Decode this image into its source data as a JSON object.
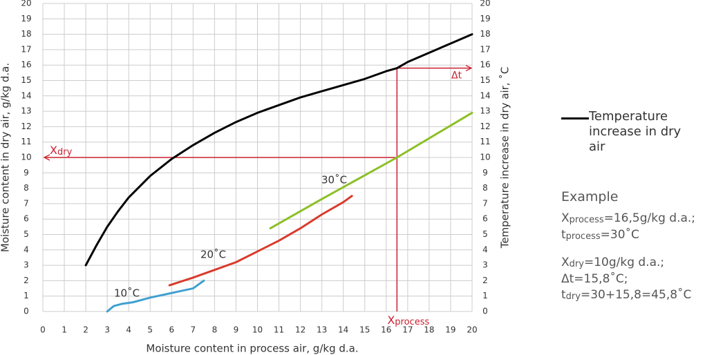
{
  "chart_data": {
    "type": "line",
    "xlabel": "Moisture content in process air, g/kg d.a.",
    "ylabel": "Moisture content in dry air, g/kg d.a.",
    "y2label": "Temperature increase in dry air, ˚C",
    "xlim": [
      0,
      20
    ],
    "ylim": [
      0,
      20
    ],
    "y2lim": [
      0,
      20
    ],
    "xticks": [
      0,
      1,
      2,
      3,
      4,
      5,
      6,
      7,
      8,
      9,
      10,
      11,
      12,
      13,
      14,
      15,
      16,
      17,
      18,
      19,
      20
    ],
    "yticks": [
      0,
      1,
      2,
      3,
      4,
      5,
      6,
      7,
      8,
      9,
      10,
      11,
      12,
      13,
      14,
      15,
      16,
      17,
      18,
      19,
      20
    ],
    "y2ticks": [
      0,
      1,
      2,
      3,
      4,
      5,
      6,
      7,
      8,
      9,
      10,
      11,
      12,
      13,
      14,
      15,
      16,
      17,
      18,
      19,
      20
    ],
    "grid": true,
    "series": [
      {
        "name": "Temperature increase in dry air",
        "color": "#000000",
        "axis": "y2",
        "x": [
          2,
          2.5,
          3,
          3.5,
          4,
          5,
          6,
          7,
          8,
          9,
          10,
          11,
          12,
          13,
          14,
          15,
          16,
          16.5,
          17,
          18,
          19,
          20
        ],
        "values": [
          3,
          4.3,
          5.5,
          6.5,
          7.4,
          8.8,
          9.9,
          10.8,
          11.6,
          12.3,
          12.9,
          13.4,
          13.9,
          14.3,
          14.7,
          15.1,
          15.6,
          15.8,
          16.2,
          16.8,
          17.4,
          18
        ]
      },
      {
        "color": "#3fa0d0",
        "x": [
          3,
          3.3,
          3.7,
          4.2,
          5,
          6,
          7,
          7.5
        ],
        "values": [
          0,
          0.35,
          0.5,
          0.6,
          0.9,
          1.2,
          1.5,
          2
        ]
      },
      {
        "color": "#d93a2b",
        "x": [
          5.9,
          7,
          8,
          9,
          10,
          11,
          12,
          13,
          14,
          14.4
        ],
        "values": [
          1.7,
          2.2,
          2.7,
          3.2,
          3.9,
          4.6,
          5.4,
          6.3,
          7.1,
          7.5
        ]
      },
      {
        "color": "#8cbf26",
        "x": [
          10.6,
          13,
          16.5,
          20
        ],
        "values": [
          5.4,
          7.3,
          10,
          12.9
        ]
      }
    ],
    "curve_labels": [
      "10˚C",
      "20˚C",
      "30˚C"
    ],
    "example_point": {
      "x": 16.5,
      "y": 10,
      "y2": 15.8
    },
    "guide_labels": {
      "x_process": [
        "X",
        "process"
      ],
      "x_dry": [
        "X",
        "dry"
      ],
      "delta_t": "Δt"
    },
    "guide_color": "#c8202f"
  },
  "example": {
    "title": "Example",
    "paragraphs": [
      [
        [
          "X",
          "process",
          "=16,5g/kg d.a.;"
        ],
        [
          "t",
          "process",
          "=30˚C"
        ]
      ],
      [
        [
          "X",
          "dry",
          "=10g/kg d.a.;"
        ],
        [
          "Δt=15,8˚C;"
        ],
        [
          "t",
          "dry",
          "=30+15,8=45,8˚C"
        ]
      ]
    ]
  }
}
